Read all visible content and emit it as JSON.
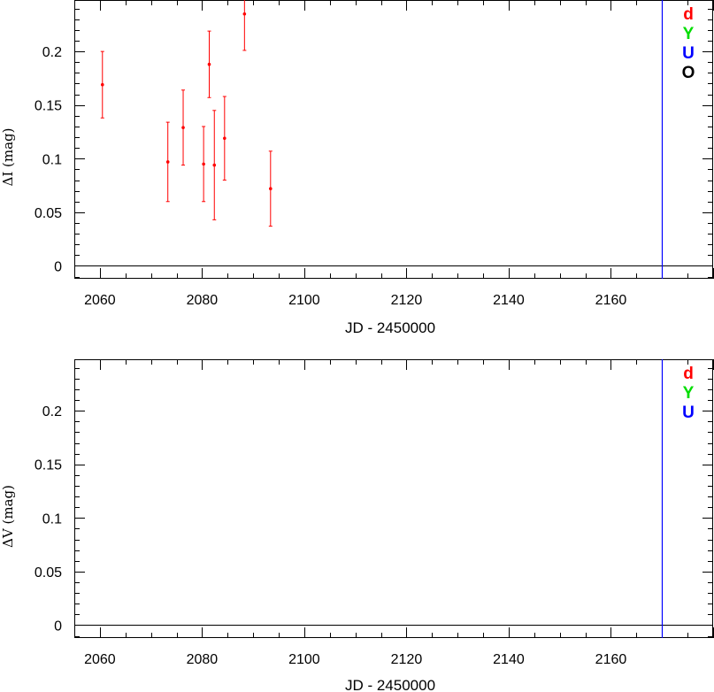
{
  "chart_data": [
    {
      "type": "scatter",
      "xlabel": "JD - 2450000",
      "ylabel": "ΔI (mag)",
      "xlim": [
        2055,
        2180
      ],
      "ylim": [
        -0.012,
        0.248
      ],
      "x_ticks": [
        2060,
        2080,
        2100,
        2120,
        2140,
        2160
      ],
      "y_ticks": [
        0,
        0.05,
        0.1,
        0.15,
        0.2
      ],
      "x_tick_labels": [
        "2060",
        "2080",
        "2100",
        "2120",
        "2140",
        "2160"
      ],
      "y_tick_labels": [
        "0",
        "0.05",
        "0.1",
        "0.15",
        "0.2"
      ],
      "zero_line": 0,
      "vline": {
        "x": 2170,
        "color": "#0000ff"
      },
      "legend": [
        {
          "label": "d",
          "color": "#ff0000"
        },
        {
          "label": "Y",
          "color": "#00dd00"
        },
        {
          "label": "U",
          "color": "#0000ff"
        },
        {
          "label": "O",
          "color": "#000000"
        }
      ],
      "legend_position": "top-right",
      "series": [
        {
          "color": "#ff0000",
          "points": [
            {
              "x": 2060.5,
              "y": 0.169,
              "err": 0.031
            },
            {
              "x": 2073.3,
              "y": 0.097,
              "err": 0.037
            },
            {
              "x": 2076.3,
              "y": 0.129,
              "err": 0.035
            },
            {
              "x": 2080.3,
              "y": 0.095,
              "err": 0.035
            },
            {
              "x": 2081.4,
              "y": 0.188,
              "err": 0.031
            },
            {
              "x": 2082.4,
              "y": 0.094,
              "err": 0.051
            },
            {
              "x": 2084.4,
              "y": 0.119,
              "err": 0.039
            },
            {
              "x": 2088.3,
              "y": 0.235,
              "err": 0.034
            },
            {
              "x": 2093.4,
              "y": 0.072,
              "err": 0.035
            }
          ]
        }
      ]
    },
    {
      "type": "scatter",
      "xlabel": "JD - 2450000",
      "ylabel": "ΔV (mag)",
      "xlim": [
        2055,
        2180
      ],
      "ylim": [
        -0.012,
        0.248
      ],
      "x_ticks": [
        2060,
        2080,
        2100,
        2120,
        2140,
        2160
      ],
      "y_ticks": [
        0,
        0.05,
        0.1,
        0.15,
        0.2
      ],
      "x_tick_labels": [
        "2060",
        "2080",
        "2100",
        "2120",
        "2140",
        "2160"
      ],
      "y_tick_labels": [
        "0",
        "0.05",
        "0.1",
        "0.15",
        "0.2"
      ],
      "zero_line": 0,
      "vline": {
        "x": 2170,
        "color": "#0000ff"
      },
      "legend": [
        {
          "label": "d",
          "color": "#ff0000"
        },
        {
          "label": "Y",
          "color": "#00dd00"
        },
        {
          "label": "U",
          "color": "#0000ff"
        }
      ],
      "legend_position": "top-right",
      "series": []
    }
  ]
}
